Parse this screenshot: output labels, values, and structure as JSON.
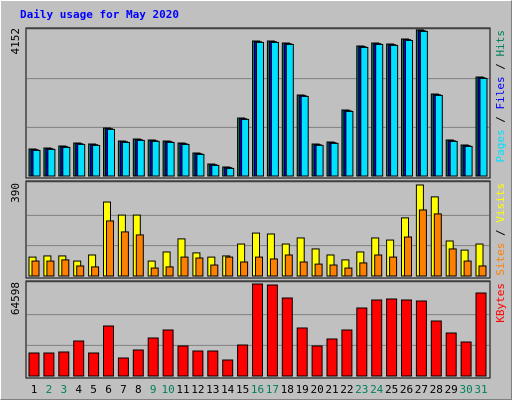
{
  "title": "Daily usage for May 2020",
  "legend_separator": "/",
  "chart_data": [
    {
      "type": "bar",
      "ylim": [
        0,
        4152
      ],
      "yticks": [
        4152
      ],
      "series": [
        {
          "name": "Hits",
          "color": "#00805c",
          "values": [
            768,
            796,
            853,
            938,
            910,
            1365,
            995,
            1052,
            1024,
            995,
            938,
            654,
            341,
            256,
            1649,
            3839,
            3839,
            3782,
            2303,
            910,
            967,
            1877,
            3697,
            3782,
            3754,
            3896,
            4152,
            2332,
            1024,
            882,
            2815
          ]
        },
        {
          "name": "Files",
          "color": "#0000ff",
          "values": [
            748,
            776,
            833,
            918,
            890,
            1345,
            975,
            1032,
            1004,
            975,
            918,
            634,
            321,
            236,
            1629,
            3819,
            3819,
            3762,
            2283,
            890,
            947,
            1857,
            3677,
            3762,
            3734,
            3876,
            4132,
            2312,
            1004,
            862,
            2795
          ]
        },
        {
          "name": "Pages",
          "color": "#00e0ff",
          "values": [
            728,
            756,
            813,
            898,
            870,
            1325,
            955,
            1012,
            984,
            955,
            898,
            614,
            301,
            216,
            1609,
            3799,
            3799,
            3742,
            2263,
            870,
            927,
            1837,
            3657,
            3742,
            3714,
            3856,
            4112,
            2292,
            984,
            842,
            2775
          ]
        }
      ]
    },
    {
      "type": "bar",
      "ylim": [
        0,
        390
      ],
      "yticks": [
        390
      ],
      "series": [
        {
          "name": "Visits",
          "color": "#ffff00",
          "values": [
            81,
            86,
            86,
            64,
            90,
            317,
            261,
            261,
            64,
            103,
            159,
            99,
            81,
            86,
            137,
            184,
            180,
            137,
            163,
            116,
            90,
            69,
            103,
            163,
            154,
            249,
            390,
            339,
            150,
            111,
            137
          ]
        },
        {
          "name": "Sites",
          "color": "#ff8000",
          "values": [
            64,
            64,
            69,
            43,
            39,
            236,
            189,
            176,
            34,
            39,
            81,
            77,
            47,
            81,
            60,
            81,
            73,
            90,
            60,
            51,
            47,
            34,
            56,
            90,
            81,
            167,
            283,
            266,
            116,
            64,
            43
          ]
        }
      ]
    },
    {
      "type": "bar",
      "ylim": [
        0,
        64598
      ],
      "yticks": [
        64598
      ],
      "categories": [
        "1",
        "2",
        "3",
        "4",
        "5",
        "6",
        "7",
        "8",
        "9",
        "10",
        "11",
        "12",
        "13",
        "14",
        "15",
        "16",
        "17",
        "18",
        "19",
        "20",
        "21",
        "22",
        "23",
        "24",
        "25",
        "26",
        "27",
        "28",
        "29",
        "30",
        "31"
      ],
      "category_colors": [
        "#000000",
        "#00805c",
        "#00805c",
        "#000000",
        "#000000",
        "#000000",
        "#000000",
        "#000000",
        "#00805c",
        "#00805c",
        "#000000",
        "#000000",
        "#000000",
        "#000000",
        "#000000",
        "#00805c",
        "#00805c",
        "#000000",
        "#000000",
        "#000000",
        "#000000",
        "#000000",
        "#00805c",
        "#00805c",
        "#000000",
        "#000000",
        "#000000",
        "#000000",
        "#000000",
        "#00805c",
        "#00805c"
      ],
      "series": [
        {
          "name": "KBytes",
          "color": "#ff0000",
          "values": [
            16150,
            16150,
            16852,
            24575,
            16150,
            35108,
            12639,
            18256,
            26682,
            32299,
            21065,
            17554,
            17554,
            11234,
            21767,
            64598,
            63896,
            54768,
            33703,
            21065,
            25980,
            32299,
            47746,
            53363,
            54066,
            53363,
            52661,
            38618,
            30193,
            23873,
            58278
          ]
        }
      ]
    }
  ]
}
